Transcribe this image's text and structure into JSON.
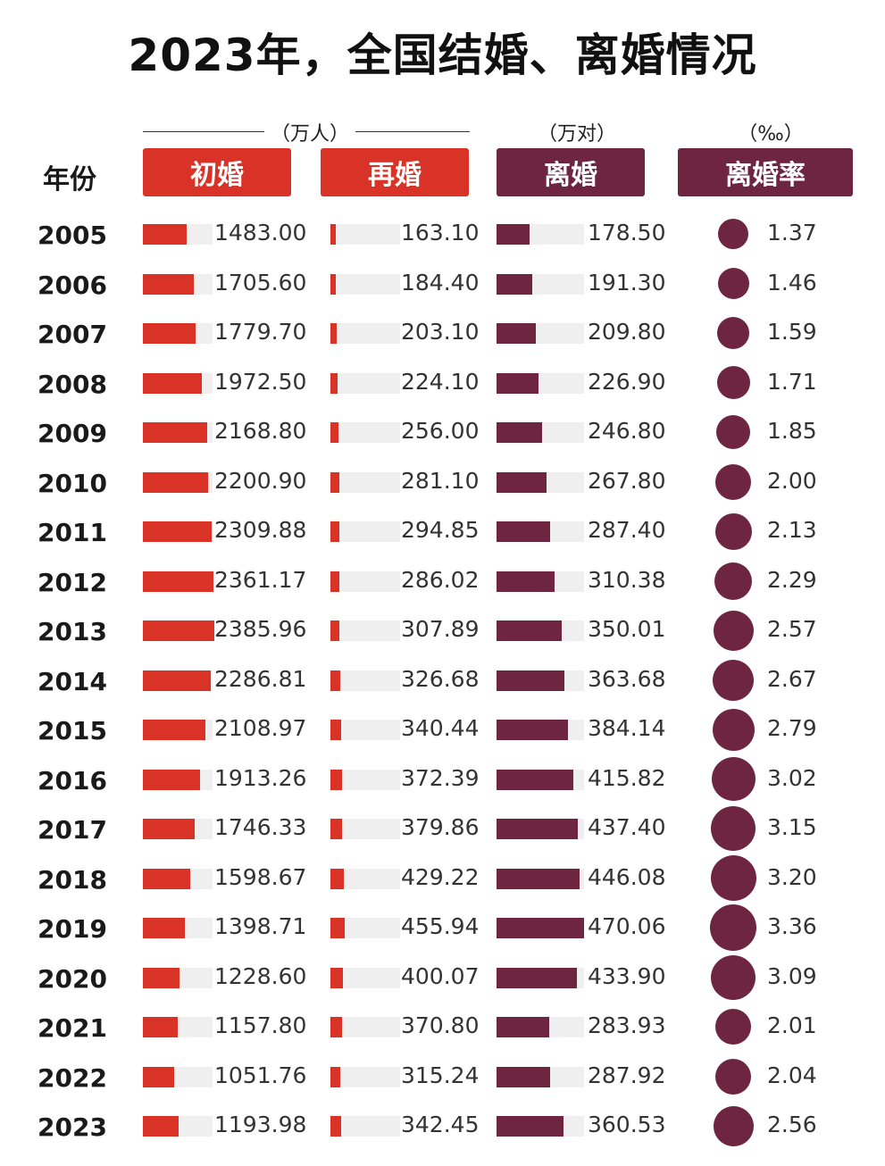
{
  "title": "2023年，全国结婚、离婚情况",
  "units": {
    "marriage": "（万人）",
    "divorce": "（万对）",
    "rate": "（‰）"
  },
  "headers": {
    "year": "年份",
    "first": "初婚",
    "re": "再婚",
    "divorce": "离婚",
    "rate": "离婚率"
  },
  "colors": {
    "red": "#d93226",
    "plum": "#6e2640",
    "track": "#efefef"
  },
  "chart_data": {
    "type": "table",
    "columns": [
      "初婚",
      "再婚",
      "离婚",
      "离婚率"
    ],
    "rows": [
      {
        "year": "2005",
        "first": "1483.00",
        "re": "163.10",
        "divorce": "178.50",
        "rate": "1.37"
      },
      {
        "year": "2006",
        "first": "1705.60",
        "re": "184.40",
        "divorce": "191.30",
        "rate": "1.46"
      },
      {
        "year": "2007",
        "first": "1779.70",
        "re": "203.10",
        "divorce": "209.80",
        "rate": "1.59"
      },
      {
        "year": "2008",
        "first": "1972.50",
        "re": "224.10",
        "divorce": "226.90",
        "rate": "1.71"
      },
      {
        "year": "2009",
        "first": "2168.80",
        "re": "256.00",
        "divorce": "246.80",
        "rate": "1.85"
      },
      {
        "year": "2010",
        "first": "2200.90",
        "re": "281.10",
        "divorce": "267.80",
        "rate": "2.00"
      },
      {
        "year": "2011",
        "first": "2309.88",
        "re": "294.85",
        "divorce": "287.40",
        "rate": "2.13"
      },
      {
        "year": "2012",
        "first": "2361.17",
        "re": "286.02",
        "divorce": "310.38",
        "rate": "2.29"
      },
      {
        "year": "2013",
        "first": "2385.96",
        "re": "307.89",
        "divorce": "350.01",
        "rate": "2.57"
      },
      {
        "year": "2014",
        "first": "2286.81",
        "re": "326.68",
        "divorce": "363.68",
        "rate": "2.67"
      },
      {
        "year": "2015",
        "first": "2108.97",
        "re": "340.44",
        "divorce": "384.14",
        "rate": "2.79"
      },
      {
        "year": "2016",
        "first": "1913.26",
        "re": "372.39",
        "divorce": "415.82",
        "rate": "3.02"
      },
      {
        "year": "2017",
        "first": "1746.33",
        "re": "379.86",
        "divorce": "437.40",
        "rate": "3.15"
      },
      {
        "year": "2018",
        "first": "1598.67",
        "re": "429.22",
        "divorce": "446.08",
        "rate": "3.20"
      },
      {
        "year": "2019",
        "first": "1398.71",
        "re": "455.94",
        "divorce": "470.06",
        "rate": "3.36"
      },
      {
        "year": "2020",
        "first": "1228.60",
        "re": "400.07",
        "divorce": "433.90",
        "rate": "3.09"
      },
      {
        "year": "2021",
        "first": "1157.80",
        "re": "370.80",
        "divorce": "283.93",
        "rate": "2.01"
      },
      {
        "year": "2022",
        "first": "1051.76",
        "re": "315.24",
        "divorce": "287.92",
        "rate": "2.04"
      },
      {
        "year": "2023",
        "first": "1193.98",
        "re": "342.45",
        "divorce": "360.53",
        "rate": "2.56"
      }
    ]
  }
}
